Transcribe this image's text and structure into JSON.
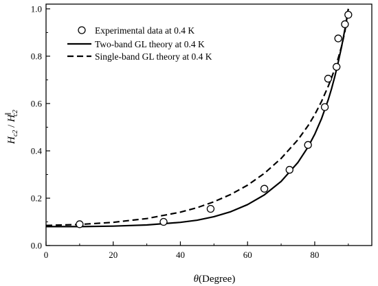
{
  "chart_data": {
    "type": "line",
    "xlabel": "θ (Degree)",
    "xlabel_symbol": "θ",
    "xlabel_unit": "(Degree)",
    "ylabel": "H_c2 / H_c2^∥",
    "ylabel_main": "H",
    "ylabel_main_sub": "c2",
    "ylabel_sep": " / ",
    "ylabel_den": "H",
    "ylabel_den_sub": "c2",
    "ylabel_den_sup": "∥",
    "xlim": [
      0,
      97
    ],
    "ylim": [
      0,
      1.02
    ],
    "xticks": [
      0,
      20,
      40,
      60,
      80
    ],
    "yticks": [
      0.0,
      0.2,
      0.4,
      0.6,
      0.8,
      1.0
    ],
    "xtick_labels": [
      "0",
      "20",
      "40",
      "60",
      "80"
    ],
    "ytick_labels": [
      "0.0",
      "0.2",
      "0.4",
      "0.6",
      "0.8",
      "1.0"
    ],
    "legend_position": "top-left",
    "series": [
      {
        "name": "Experimental data at 0.4 K",
        "kind": "scatter",
        "marker": "open-circle",
        "x": [
          10,
          35,
          49,
          65,
          72.5,
          78,
          83,
          84,
          86.5,
          87,
          89,
          90
        ],
        "y": [
          0.09,
          0.1,
          0.155,
          0.24,
          0.32,
          0.425,
          0.585,
          0.705,
          0.755,
          0.875,
          0.935,
          0.975
        ]
      },
      {
        "name": "Two-band GL theory at 0.4 K",
        "kind": "line",
        "style": "solid",
        "x": [
          0,
          10,
          20,
          30,
          40,
          45,
          50,
          55,
          60,
          65,
          70,
          75,
          78,
          80,
          82,
          84,
          85,
          86,
          87,
          88,
          89,
          90
        ],
        "y": [
          0.08,
          0.08,
          0.082,
          0.087,
          0.098,
          0.107,
          0.122,
          0.143,
          0.173,
          0.214,
          0.271,
          0.351,
          0.416,
          0.47,
          0.535,
          0.615,
          0.662,
          0.715,
          0.775,
          0.84,
          0.915,
          1.0
        ]
      },
      {
        "name": "Single-band GL theory at 0.4 K",
        "kind": "line",
        "style": "dashed",
        "x": [
          0,
          10,
          20,
          30,
          40,
          45,
          50,
          55,
          60,
          65,
          70,
          75,
          78,
          80,
          82,
          84,
          85,
          86,
          87,
          88,
          89,
          90
        ],
        "y": [
          0.085,
          0.089,
          0.098,
          0.114,
          0.141,
          0.16,
          0.185,
          0.216,
          0.255,
          0.305,
          0.368,
          0.447,
          0.506,
          0.553,
          0.608,
          0.672,
          0.708,
          0.748,
          0.792,
          0.842,
          0.905,
          1.0
        ]
      }
    ]
  }
}
